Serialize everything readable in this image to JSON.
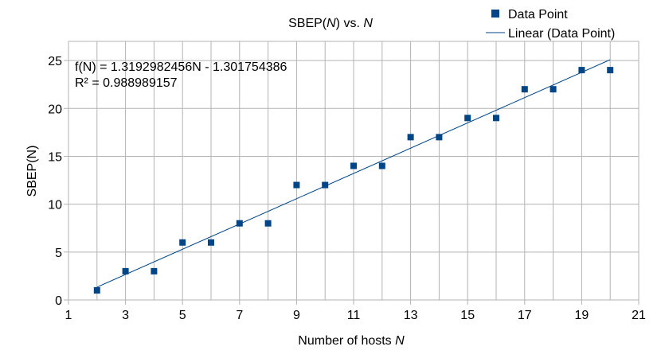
{
  "chart_data": {
    "type": "scatter",
    "title": {
      "prefix": "SBEP(",
      "var": "N",
      "suffix": ") vs. ",
      "var2": "N"
    },
    "xlabel": {
      "text": "Number of hosts ",
      "var": "N"
    },
    "ylabel": "SBEP(N)",
    "xlim": [
      1,
      21
    ],
    "ylim": [
      0,
      27
    ],
    "x_ticks": [
      1,
      3,
      5,
      7,
      9,
      11,
      13,
      15,
      17,
      19,
      21
    ],
    "y_ticks": [
      0,
      5,
      10,
      15,
      20,
      25
    ],
    "grid": true,
    "legend_position": "top-right",
    "series": [
      {
        "name": "Data Point",
        "marker": "square",
        "color": "#004586",
        "x": [
          2,
          3,
          4,
          5,
          6,
          7,
          8,
          9,
          10,
          11,
          12,
          13,
          14,
          15,
          16,
          17,
          18,
          19,
          20
        ],
        "y": [
          1,
          3,
          3,
          6,
          6,
          8,
          8,
          12,
          12,
          14,
          14,
          17,
          17,
          19,
          19,
          22,
          22,
          24,
          24
        ]
      }
    ],
    "trendline": {
      "name": "Linear (Data Point)",
      "color": "#004586",
      "slope": 1.3192982456,
      "intercept": -1.301754386,
      "x_range": [
        2,
        20
      ],
      "equation": "f(N) = 1.3192982456N - 1.301754386",
      "r_squared": "R² = 0.988989157"
    }
  }
}
